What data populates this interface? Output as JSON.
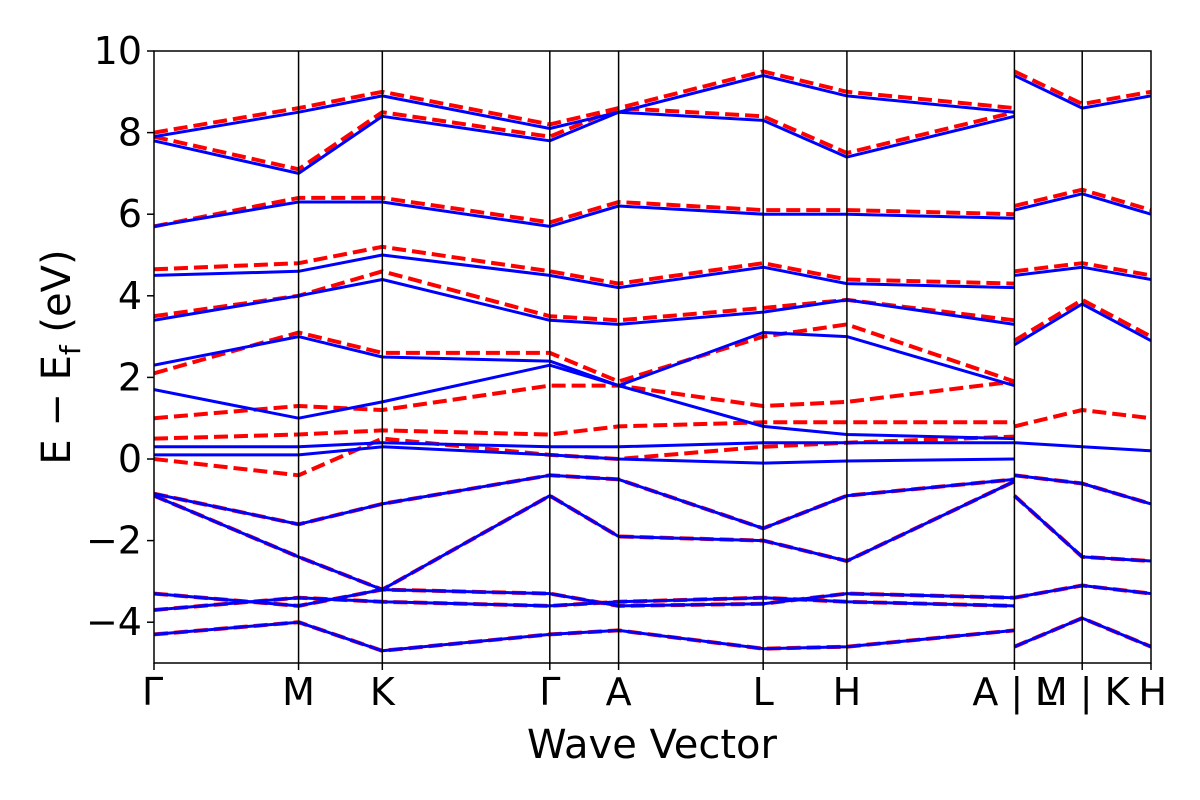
{
  "chart_data": {
    "type": "line",
    "xlabel": "Wave Vector",
    "ylabel": "E − E",
    "ylabel_sub": "f",
    "ylabel_unit": " (eV)",
    "ylim": [
      -5,
      10
    ],
    "yticks": [
      -4,
      -2,
      0,
      2,
      4,
      6,
      8,
      10
    ],
    "ytick_labels": [
      "−4",
      "−2",
      "0",
      "2",
      "4",
      "6",
      "8",
      "10"
    ],
    "x_range": [
      0,
      100
    ],
    "kpoints": [
      {
        "label": "Γ",
        "x": 0
      },
      {
        "label": "M",
        "x": 14.5
      },
      {
        "label": "K",
        "x": 22.9
      },
      {
        "label": "Γ",
        "x": 39.7
      },
      {
        "label": "A",
        "x": 46.6
      },
      {
        "label": "L",
        "x": 61.1
      },
      {
        "label": "H",
        "x": 69.5
      },
      {
        "label": "A | L",
        "x": 86.3
      },
      {
        "label": "M | K",
        "x": 93.1
      },
      {
        "label": "H",
        "x": 100
      }
    ],
    "series": [
      {
        "style": "dashed",
        "color": "#ff0000",
        "bands": [
          {
            "x": [
              0,
              14.5,
              22.9,
              39.7,
              46.6,
              61.1,
              69.5,
              86.3
            ],
            "y": [
              -4.3,
              -4.0,
              -4.7,
              -4.3,
              -4.2,
              -4.65,
              -4.6,
              -4.2
            ]
          },
          {
            "x": [
              0,
              14.5,
              22.9,
              39.7,
              46.6,
              61.1,
              69.5,
              86.3
            ],
            "y": [
              -3.7,
              -3.4,
              -3.5,
              -3.6,
              -3.5,
              -3.4,
              -3.5,
              -3.6
            ]
          },
          {
            "x": [
              0,
              14.5,
              22.9,
              39.7,
              46.6,
              61.1,
              69.5,
              86.3
            ],
            "y": [
              -3.3,
              -3.6,
              -3.2,
              -3.3,
              -3.6,
              -3.55,
              -3.3,
              -3.4
            ]
          },
          {
            "x": [
              0,
              14.5,
              22.9,
              39.7,
              46.6,
              61.1,
              69.5,
              86.3
            ],
            "y": [
              -0.9,
              -2.4,
              -3.2,
              -0.9,
              -1.9,
              -2.0,
              -2.5,
              -0.55
            ]
          },
          {
            "x": [
              0,
              14.5,
              22.9,
              39.7,
              46.6,
              61.1,
              69.5,
              86.3
            ],
            "y": [
              -0.85,
              -1.6,
              -1.1,
              -0.4,
              -0.5,
              -1.7,
              -0.9,
              -0.5
            ]
          },
          {
            "x": [
              0,
              14.5,
              22.9,
              39.7,
              46.6,
              61.1,
              69.5,
              86.3
            ],
            "y": [
              0.0,
              -0.4,
              0.5,
              0.1,
              0.0,
              0.3,
              0.4,
              0.55
            ]
          },
          {
            "x": [
              0,
              14.5,
              22.9,
              39.7,
              46.6,
              61.1,
              69.5,
              86.3
            ],
            "y": [
              0.5,
              0.6,
              0.7,
              0.6,
              0.8,
              0.9,
              0.9,
              0.9
            ]
          },
          {
            "x": [
              0,
              14.5,
              22.9,
              39.7,
              46.6,
              61.1,
              69.5,
              86.3
            ],
            "y": [
              1.0,
              1.3,
              1.2,
              1.8,
              1.8,
              1.3,
              1.4,
              1.9
            ]
          },
          {
            "x": [
              0,
              14.5,
              22.9,
              39.7,
              46.6,
              61.1,
              69.5,
              86.3
            ],
            "y": [
              2.1,
              3.1,
              2.6,
              2.6,
              1.9,
              3.0,
              3.3,
              1.9
            ]
          },
          {
            "x": [
              0,
              14.5,
              22.9,
              39.7,
              46.6,
              61.1,
              69.5,
              86.3
            ],
            "y": [
              3.5,
              4.0,
              4.6,
              3.5,
              3.4,
              3.7,
              3.9,
              3.4
            ]
          },
          {
            "x": [
              0,
              14.5,
              22.9,
              39.7,
              46.6,
              61.1,
              69.5,
              86.3
            ],
            "y": [
              4.65,
              4.8,
              5.2,
              4.6,
              4.3,
              4.8,
              4.4,
              4.3
            ]
          },
          {
            "x": [
              0,
              14.5,
              22.9,
              39.7,
              46.6,
              61.1,
              69.5,
              86.3
            ],
            "y": [
              5.7,
              6.4,
              6.4,
              5.8,
              6.3,
              6.1,
              6.1,
              6.0
            ]
          },
          {
            "x": [
              0,
              14.5,
              22.9,
              39.7,
              46.6,
              61.1,
              69.5,
              86.3
            ],
            "y": [
              7.9,
              7.1,
              8.5,
              7.9,
              8.6,
              8.4,
              7.5,
              8.5
            ]
          },
          {
            "x": [
              0,
              14.5,
              22.9,
              39.7,
              46.6,
              61.1,
              69.5,
              86.3
            ],
            "y": [
              8.0,
              8.6,
              9.0,
              8.2,
              8.6,
              9.5,
              9.0,
              8.6
            ]
          },
          {
            "x": [
              86.3,
              93.1,
              100
            ],
            "y": [
              -4.6,
              -3.9,
              -4.6
            ]
          },
          {
            "x": [
              86.3,
              93.1,
              100
            ],
            "y": [
              -3.4,
              -3.1,
              -3.3
            ]
          },
          {
            "x": [
              86.3,
              93.1,
              100
            ],
            "y": [
              -0.9,
              -2.4,
              -2.5
            ]
          },
          {
            "x": [
              86.3,
              93.1,
              100
            ],
            "y": [
              -0.4,
              -0.6,
              -1.1
            ]
          },
          {
            "x": [
              86.3,
              93.1,
              100
            ],
            "y": [
              0.8,
              1.2,
              1.0
            ]
          },
          {
            "x": [
              86.3,
              93.1,
              100
            ],
            "y": [
              2.9,
              3.9,
              3.0
            ]
          },
          {
            "x": [
              86.3,
              93.1,
              100
            ],
            "y": [
              4.6,
              4.8,
              4.5
            ]
          },
          {
            "x": [
              86.3,
              93.1,
              100
            ],
            "y": [
              6.2,
              6.6,
              6.1
            ]
          },
          {
            "x": [
              86.3,
              93.1,
              100
            ],
            "y": [
              9.5,
              8.7,
              9.0
            ]
          }
        ]
      },
      {
        "style": "solid",
        "color": "#0000ff",
        "bands": [
          {
            "x": [
              0,
              14.5,
              22.9,
              39.7,
              46.6,
              61.1,
              69.5,
              86.3
            ],
            "y": [
              -4.3,
              -4.0,
              -4.7,
              -4.3,
              -4.2,
              -4.65,
              -4.6,
              -4.2
            ]
          },
          {
            "x": [
              0,
              14.5,
              22.9,
              39.7,
              46.6,
              61.1,
              69.5,
              86.3
            ],
            "y": [
              -3.7,
              -3.4,
              -3.5,
              -3.6,
              -3.5,
              -3.4,
              -3.5,
              -3.6
            ]
          },
          {
            "x": [
              0,
              14.5,
              22.9,
              39.7,
              46.6,
              61.1,
              69.5,
              86.3
            ],
            "y": [
              -3.3,
              -3.6,
              -3.2,
              -3.3,
              -3.6,
              -3.55,
              -3.3,
              -3.4
            ]
          },
          {
            "x": [
              0,
              14.5,
              22.9,
              39.7,
              46.6,
              61.1,
              69.5,
              86.3
            ],
            "y": [
              -0.9,
              -2.4,
              -3.2,
              -0.9,
              -1.9,
              -2.0,
              -2.5,
              -0.55
            ]
          },
          {
            "x": [
              0,
              14.5,
              22.9,
              39.7,
              46.6,
              61.1,
              69.5,
              86.3
            ],
            "y": [
              -0.85,
              -1.6,
              -1.1,
              -0.4,
              -0.5,
              -1.7,
              -0.9,
              -0.5
            ]
          },
          {
            "x": [
              0,
              14.5,
              22.9,
              39.7,
              46.6,
              61.1,
              69.5,
              86.3
            ],
            "y": [
              0.1,
              0.1,
              0.3,
              0.1,
              0.0,
              -0.1,
              -0.05,
              0.0
            ]
          },
          {
            "x": [
              0,
              14.5,
              22.9,
              39.7,
              46.6,
              61.1,
              69.5,
              86.3
            ],
            "y": [
              0.3,
              0.3,
              0.4,
              0.3,
              0.3,
              0.4,
              0.4,
              0.4
            ]
          },
          {
            "x": [
              0,
              14.5,
              22.9,
              39.7,
              46.6,
              61.1,
              69.5,
              86.3
            ],
            "y": [
              1.7,
              1.0,
              1.4,
              2.3,
              1.8,
              0.8,
              0.6,
              0.5
            ]
          },
          {
            "x": [
              0,
              14.5,
              22.9,
              39.7,
              46.6,
              61.1,
              69.5,
              86.3
            ],
            "y": [
              2.3,
              3.0,
              2.5,
              2.4,
              1.8,
              3.1,
              3.0,
              1.8
            ]
          },
          {
            "x": [
              0,
              14.5,
              22.9,
              39.7,
              46.6,
              61.1,
              69.5,
              86.3
            ],
            "y": [
              3.4,
              4.0,
              4.4,
              3.4,
              3.3,
              3.6,
              3.9,
              3.3
            ]
          },
          {
            "x": [
              0,
              14.5,
              22.9,
              39.7,
              46.6,
              61.1,
              69.5,
              86.3
            ],
            "y": [
              4.5,
              4.6,
              5.0,
              4.5,
              4.2,
              4.7,
              4.3,
              4.2
            ]
          },
          {
            "x": [
              0,
              14.5,
              22.9,
              39.7,
              46.6,
              61.1,
              69.5,
              86.3
            ],
            "y": [
              5.7,
              6.3,
              6.3,
              5.7,
              6.2,
              6.0,
              6.0,
              5.9
            ]
          },
          {
            "x": [
              0,
              14.5,
              22.9,
              39.7,
              46.6,
              61.1,
              69.5,
              86.3
            ],
            "y": [
              7.8,
              7.0,
              8.4,
              7.8,
              8.5,
              8.3,
              7.4,
              8.4
            ]
          },
          {
            "x": [
              0,
              14.5,
              22.9,
              39.7,
              46.6,
              61.1,
              69.5,
              86.3
            ],
            "y": [
              7.9,
              8.5,
              8.9,
              8.1,
              8.5,
              9.4,
              8.9,
              8.5
            ]
          },
          {
            "x": [
              86.3,
              93.1,
              100
            ],
            "y": [
              -4.6,
              -3.9,
              -4.6
            ]
          },
          {
            "x": [
              86.3,
              93.1,
              100
            ],
            "y": [
              -3.4,
              -3.1,
              -3.3
            ]
          },
          {
            "x": [
              86.3,
              93.1,
              100
            ],
            "y": [
              -0.9,
              -2.4,
              -2.5
            ]
          },
          {
            "x": [
              86.3,
              93.1,
              100
            ],
            "y": [
              -0.4,
              -0.6,
              -1.1
            ]
          },
          {
            "x": [
              86.3,
              93.1,
              100
            ],
            "y": [
              0.4,
              0.3,
              0.2
            ]
          },
          {
            "x": [
              86.3,
              93.1,
              100
            ],
            "y": [
              2.8,
              3.8,
              2.9
            ]
          },
          {
            "x": [
              86.3,
              93.1,
              100
            ],
            "y": [
              4.5,
              4.7,
              4.4
            ]
          },
          {
            "x": [
              86.3,
              93.1,
              100
            ],
            "y": [
              6.1,
              6.5,
              6.0
            ]
          },
          {
            "x": [
              86.3,
              93.1,
              100
            ],
            "y": [
              9.4,
              8.6,
              8.9
            ]
          }
        ]
      }
    ]
  }
}
